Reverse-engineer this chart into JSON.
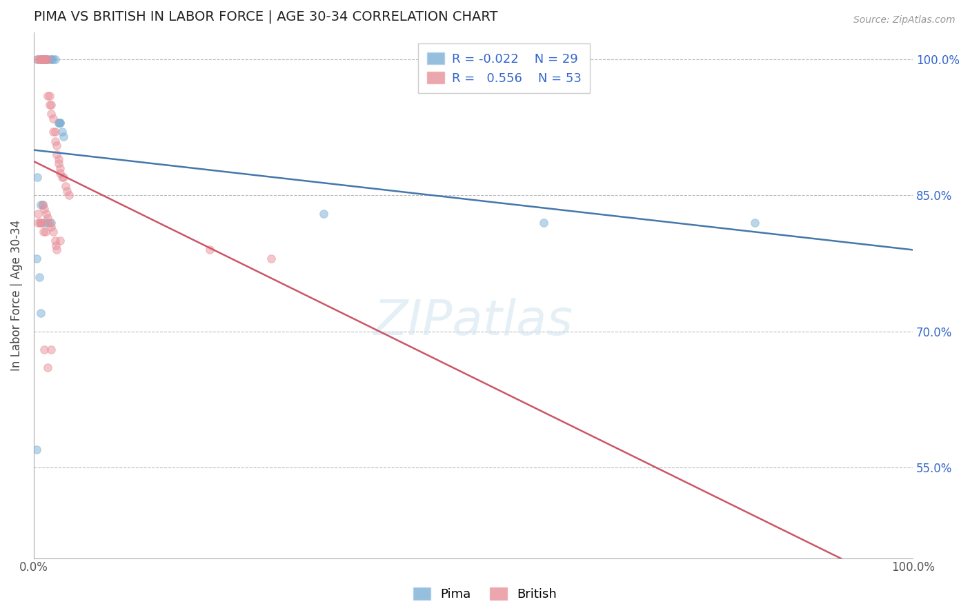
{
  "title": "PIMA VS BRITISH IN LABOR FORCE | AGE 30-34 CORRELATION CHART",
  "ylabel": "In Labor Force | Age 30-34",
  "source": "Source: ZipAtlas.com",
  "xlim": [
    0.0,
    1.0
  ],
  "ylim": [
    0.45,
    1.03
  ],
  "ytick_vals": [
    0.55,
    0.7,
    0.85,
    1.0
  ],
  "pima_R": "-0.022",
  "pima_N": "29",
  "british_R": "0.556",
  "british_N": "53",
  "pima_x": [
    0.004,
    0.008,
    0.012,
    0.012,
    0.014,
    0.016,
    0.02,
    0.02,
    0.022,
    0.024,
    0.028,
    0.028,
    0.03,
    0.03,
    0.032,
    0.034,
    0.004,
    0.008,
    0.01,
    0.012,
    0.016,
    0.02,
    0.003,
    0.006,
    0.008,
    0.003,
    0.33,
    0.58,
    0.82
  ],
  "pima_y": [
    1.0,
    1.0,
    1.0,
    1.0,
    1.0,
    1.0,
    1.0,
    1.0,
    1.0,
    1.0,
    0.93,
    0.93,
    0.93,
    0.93,
    0.92,
    0.915,
    0.87,
    0.84,
    0.84,
    0.82,
    0.82,
    0.82,
    0.78,
    0.76,
    0.72,
    0.57,
    0.83,
    0.82,
    0.82
  ],
  "british_x": [
    0.004,
    0.006,
    0.008,
    0.008,
    0.01,
    0.01,
    0.012,
    0.012,
    0.014,
    0.016,
    0.016,
    0.018,
    0.018,
    0.02,
    0.02,
    0.022,
    0.022,
    0.024,
    0.024,
    0.026,
    0.026,
    0.028,
    0.028,
    0.03,
    0.03,
    0.032,
    0.034,
    0.036,
    0.038,
    0.04,
    0.01,
    0.012,
    0.014,
    0.016,
    0.018,
    0.02,
    0.022,
    0.024,
    0.026,
    0.005,
    0.007,
    0.009,
    0.011,
    0.013,
    0.2,
    0.27,
    0.005,
    0.008,
    0.03,
    0.025,
    0.02,
    0.016,
    0.012
  ],
  "british_y": [
    1.0,
    1.0,
    1.0,
    1.0,
    1.0,
    1.0,
    1.0,
    1.0,
    1.0,
    1.0,
    0.96,
    0.96,
    0.95,
    0.95,
    0.94,
    0.935,
    0.92,
    0.92,
    0.91,
    0.905,
    0.895,
    0.89,
    0.885,
    0.88,
    0.875,
    0.87,
    0.87,
    0.86,
    0.855,
    0.85,
    0.84,
    0.835,
    0.83,
    0.825,
    0.82,
    0.815,
    0.81,
    0.8,
    0.79,
    0.83,
    0.82,
    0.82,
    0.81,
    0.81,
    0.79,
    0.78,
    0.82,
    0.82,
    0.8,
    0.795,
    0.68,
    0.66,
    0.68
  ],
  "pima_color": "#7bafd4",
  "british_color": "#e8909a",
  "pima_line_color": "#4477aa",
  "british_line_color": "#cc5566",
  "marker_size": 70,
  "marker_alpha": 0.5,
  "background_color": "#ffffff",
  "grid_color": "#bbbbbb"
}
